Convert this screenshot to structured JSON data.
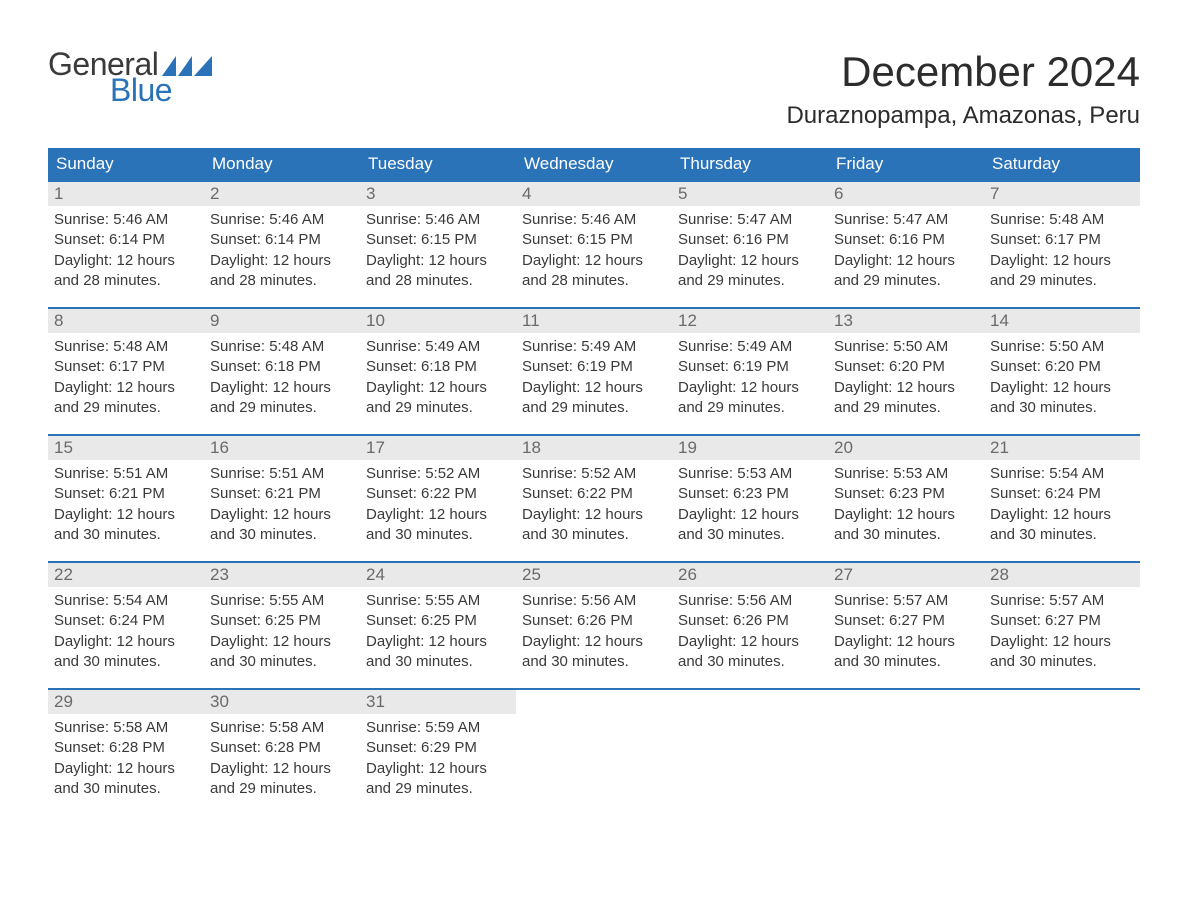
{
  "brand": {
    "text_general": "General",
    "text_blue": "Blue",
    "flag_color": "#2a73b8",
    "text_color_dark": "#3a3a3a"
  },
  "title": "December 2024",
  "location": "Duraznopampa, Amazonas, Peru",
  "colors": {
    "header_bg": "#2a73b8",
    "header_text": "#ffffff",
    "daynum_bg": "#e9e9e9",
    "daynum_text": "#6a6a6a",
    "body_text": "#3a3a3a",
    "row_border": "#2a73b8",
    "page_bg": "#ffffff"
  },
  "typography": {
    "month_title_fontsize": 42,
    "location_fontsize": 24,
    "dow_fontsize": 17,
    "daynum_fontsize": 17,
    "body_fontsize": 15
  },
  "days_of_week": [
    "Sunday",
    "Monday",
    "Tuesday",
    "Wednesday",
    "Thursday",
    "Friday",
    "Saturday"
  ],
  "label_sunrise": "Sunrise: ",
  "label_sunset": "Sunset: ",
  "label_daylight_prefix": "Daylight: ",
  "weeks": [
    [
      {
        "n": "1",
        "sunrise": "5:46 AM",
        "sunset": "6:14 PM",
        "daylight": "12 hours and 28 minutes."
      },
      {
        "n": "2",
        "sunrise": "5:46 AM",
        "sunset": "6:14 PM",
        "daylight": "12 hours and 28 minutes."
      },
      {
        "n": "3",
        "sunrise": "5:46 AM",
        "sunset": "6:15 PM",
        "daylight": "12 hours and 28 minutes."
      },
      {
        "n": "4",
        "sunrise": "5:46 AM",
        "sunset": "6:15 PM",
        "daylight": "12 hours and 28 minutes."
      },
      {
        "n": "5",
        "sunrise": "5:47 AM",
        "sunset": "6:16 PM",
        "daylight": "12 hours and 29 minutes."
      },
      {
        "n": "6",
        "sunrise": "5:47 AM",
        "sunset": "6:16 PM",
        "daylight": "12 hours and 29 minutes."
      },
      {
        "n": "7",
        "sunrise": "5:48 AM",
        "sunset": "6:17 PM",
        "daylight": "12 hours and 29 minutes."
      }
    ],
    [
      {
        "n": "8",
        "sunrise": "5:48 AM",
        "sunset": "6:17 PM",
        "daylight": "12 hours and 29 minutes."
      },
      {
        "n": "9",
        "sunrise": "5:48 AM",
        "sunset": "6:18 PM",
        "daylight": "12 hours and 29 minutes."
      },
      {
        "n": "10",
        "sunrise": "5:49 AM",
        "sunset": "6:18 PM",
        "daylight": "12 hours and 29 minutes."
      },
      {
        "n": "11",
        "sunrise": "5:49 AM",
        "sunset": "6:19 PM",
        "daylight": "12 hours and 29 minutes."
      },
      {
        "n": "12",
        "sunrise": "5:49 AM",
        "sunset": "6:19 PM",
        "daylight": "12 hours and 29 minutes."
      },
      {
        "n": "13",
        "sunrise": "5:50 AM",
        "sunset": "6:20 PM",
        "daylight": "12 hours and 29 minutes."
      },
      {
        "n": "14",
        "sunrise": "5:50 AM",
        "sunset": "6:20 PM",
        "daylight": "12 hours and 30 minutes."
      }
    ],
    [
      {
        "n": "15",
        "sunrise": "5:51 AM",
        "sunset": "6:21 PM",
        "daylight": "12 hours and 30 minutes."
      },
      {
        "n": "16",
        "sunrise": "5:51 AM",
        "sunset": "6:21 PM",
        "daylight": "12 hours and 30 minutes."
      },
      {
        "n": "17",
        "sunrise": "5:52 AM",
        "sunset": "6:22 PM",
        "daylight": "12 hours and 30 minutes."
      },
      {
        "n": "18",
        "sunrise": "5:52 AM",
        "sunset": "6:22 PM",
        "daylight": "12 hours and 30 minutes."
      },
      {
        "n": "19",
        "sunrise": "5:53 AM",
        "sunset": "6:23 PM",
        "daylight": "12 hours and 30 minutes."
      },
      {
        "n": "20",
        "sunrise": "5:53 AM",
        "sunset": "6:23 PM",
        "daylight": "12 hours and 30 minutes."
      },
      {
        "n": "21",
        "sunrise": "5:54 AM",
        "sunset": "6:24 PM",
        "daylight": "12 hours and 30 minutes."
      }
    ],
    [
      {
        "n": "22",
        "sunrise": "5:54 AM",
        "sunset": "6:24 PM",
        "daylight": "12 hours and 30 minutes."
      },
      {
        "n": "23",
        "sunrise": "5:55 AM",
        "sunset": "6:25 PM",
        "daylight": "12 hours and 30 minutes."
      },
      {
        "n": "24",
        "sunrise": "5:55 AM",
        "sunset": "6:25 PM",
        "daylight": "12 hours and 30 minutes."
      },
      {
        "n": "25",
        "sunrise": "5:56 AM",
        "sunset": "6:26 PM",
        "daylight": "12 hours and 30 minutes."
      },
      {
        "n": "26",
        "sunrise": "5:56 AM",
        "sunset": "6:26 PM",
        "daylight": "12 hours and 30 minutes."
      },
      {
        "n": "27",
        "sunrise": "5:57 AM",
        "sunset": "6:27 PM",
        "daylight": "12 hours and 30 minutes."
      },
      {
        "n": "28",
        "sunrise": "5:57 AM",
        "sunset": "6:27 PM",
        "daylight": "12 hours and 30 minutes."
      }
    ],
    [
      {
        "n": "29",
        "sunrise": "5:58 AM",
        "sunset": "6:28 PM",
        "daylight": "12 hours and 30 minutes."
      },
      {
        "n": "30",
        "sunrise": "5:58 AM",
        "sunset": "6:28 PM",
        "daylight": "12 hours and 29 minutes."
      },
      {
        "n": "31",
        "sunrise": "5:59 AM",
        "sunset": "6:29 PM",
        "daylight": "12 hours and 29 minutes."
      },
      null,
      null,
      null,
      null
    ]
  ]
}
